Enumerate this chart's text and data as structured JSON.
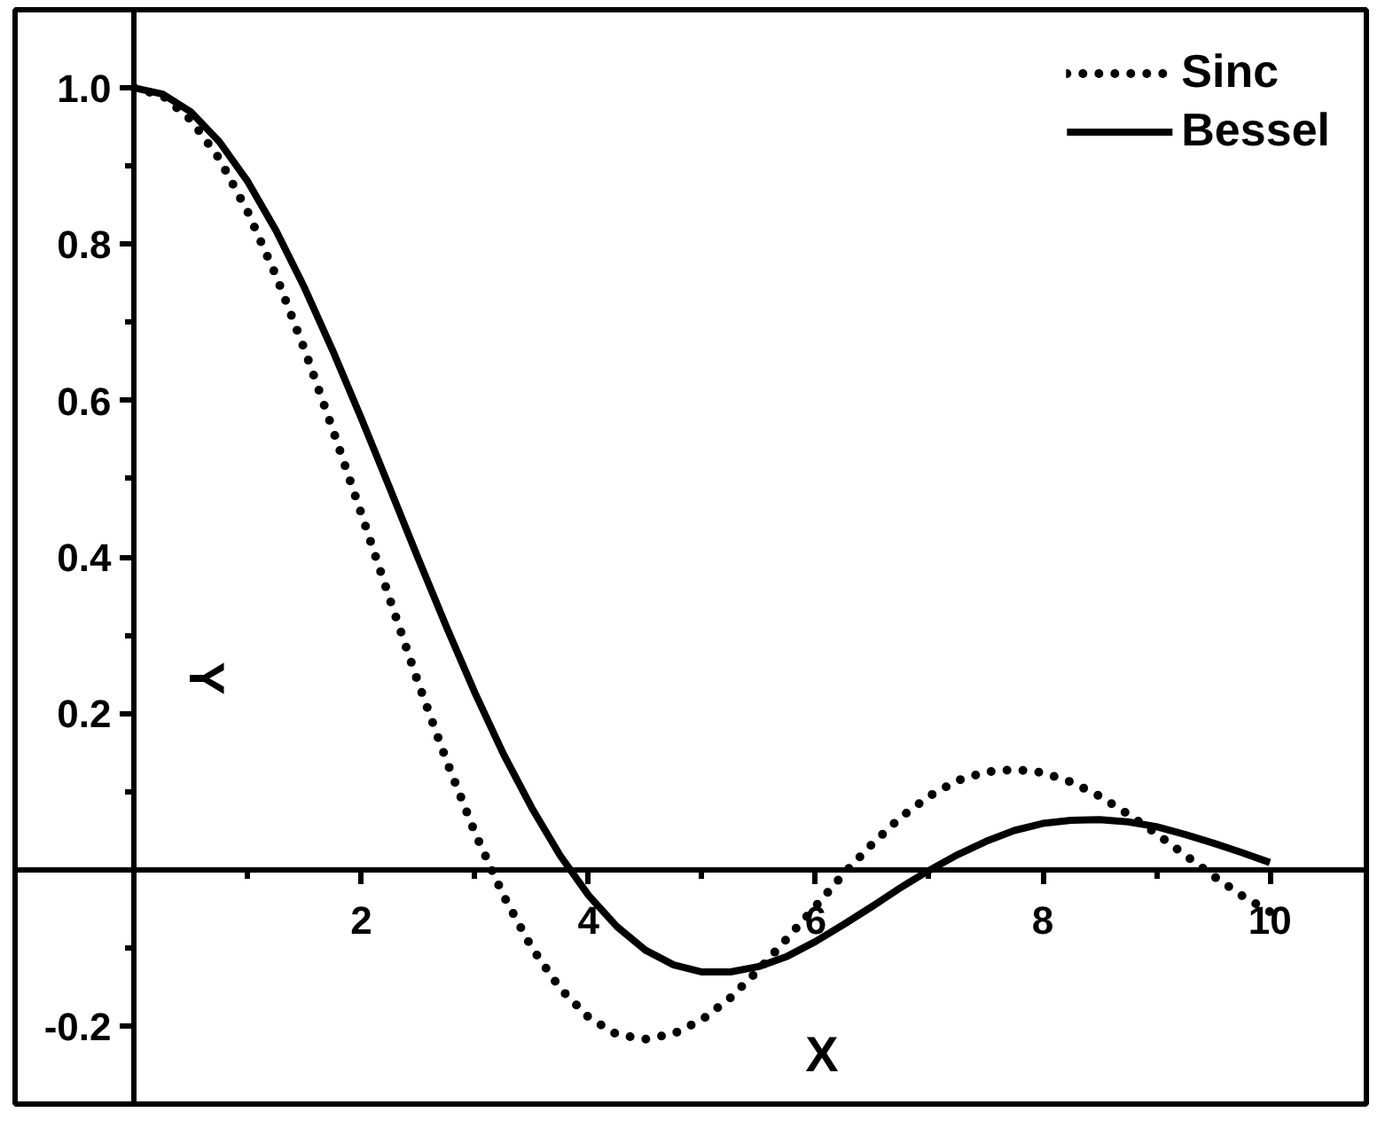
{
  "chart_data": {
    "type": "line",
    "xlabel": "X",
    "ylabel": "Y",
    "x": [
      0,
      0.25,
      0.5,
      0.75,
      1,
      1.25,
      1.5,
      1.75,
      2,
      2.25,
      2.5,
      2.75,
      3,
      3.25,
      3.5,
      3.75,
      4,
      4.25,
      4.5,
      4.75,
      5,
      5.25,
      5.5,
      5.75,
      6,
      6.25,
      6.5,
      6.75,
      7,
      7.25,
      7.5,
      7.75,
      8,
      8.25,
      8.5,
      8.75,
      9,
      9.25,
      9.5,
      9.75,
      10
    ],
    "series": [
      {
        "name": "Sinc",
        "color": "#000000",
        "line_style": "dotted",
        "values": [
          1,
          0.99,
          0.959,
          0.909,
          0.841,
          0.759,
          0.665,
          0.562,
          0.455,
          0.346,
          0.239,
          0.139,
          0.047,
          -0.033,
          -0.1,
          -0.152,
          -0.189,
          -0.211,
          -0.217,
          -0.21,
          -0.192,
          -0.164,
          -0.128,
          -0.088,
          -0.047,
          -0.005,
          0.033,
          0.067,
          0.094,
          0.114,
          0.125,
          0.128,
          0.124,
          0.112,
          0.094,
          0.071,
          0.046,
          0.019,
          -0.008,
          -0.033,
          -0.054
        ]
      },
      {
        "name": "Bessel",
        "color": "#000000",
        "line_style": "solid",
        "values": [
          1,
          0.992,
          0.969,
          0.931,
          0.88,
          0.817,
          0.744,
          0.663,
          0.577,
          0.488,
          0.398,
          0.31,
          0.226,
          0.148,
          0.079,
          0.018,
          -0.033,
          -0.073,
          -0.103,
          -0.122,
          -0.131,
          -0.131,
          -0.124,
          -0.111,
          -0.092,
          -0.07,
          -0.047,
          -0.023,
          -0.001,
          0.019,
          0.036,
          0.05,
          0.059,
          0.063,
          0.064,
          0.061,
          0.055,
          0.045,
          0.034,
          0.022,
          0.009
        ]
      }
    ],
    "xlim": [
      -1.05,
      10.85
    ],
    "ylim": [
      -0.3,
      1.1
    ],
    "xticks": [
      2,
      4,
      6,
      8,
      10
    ],
    "yticks": [
      {
        "value": -0.2,
        "label": "-0.2"
      },
      {
        "value": 0.2,
        "label": "0.2"
      },
      {
        "value": 0.4,
        "label": "0.4"
      },
      {
        "value": 0.6,
        "label": "0.6"
      },
      {
        "value": 0.8,
        "label": "0.8"
      },
      {
        "value": 1,
        "label": "1.0"
      }
    ],
    "grid": false,
    "legend": "top right"
  }
}
